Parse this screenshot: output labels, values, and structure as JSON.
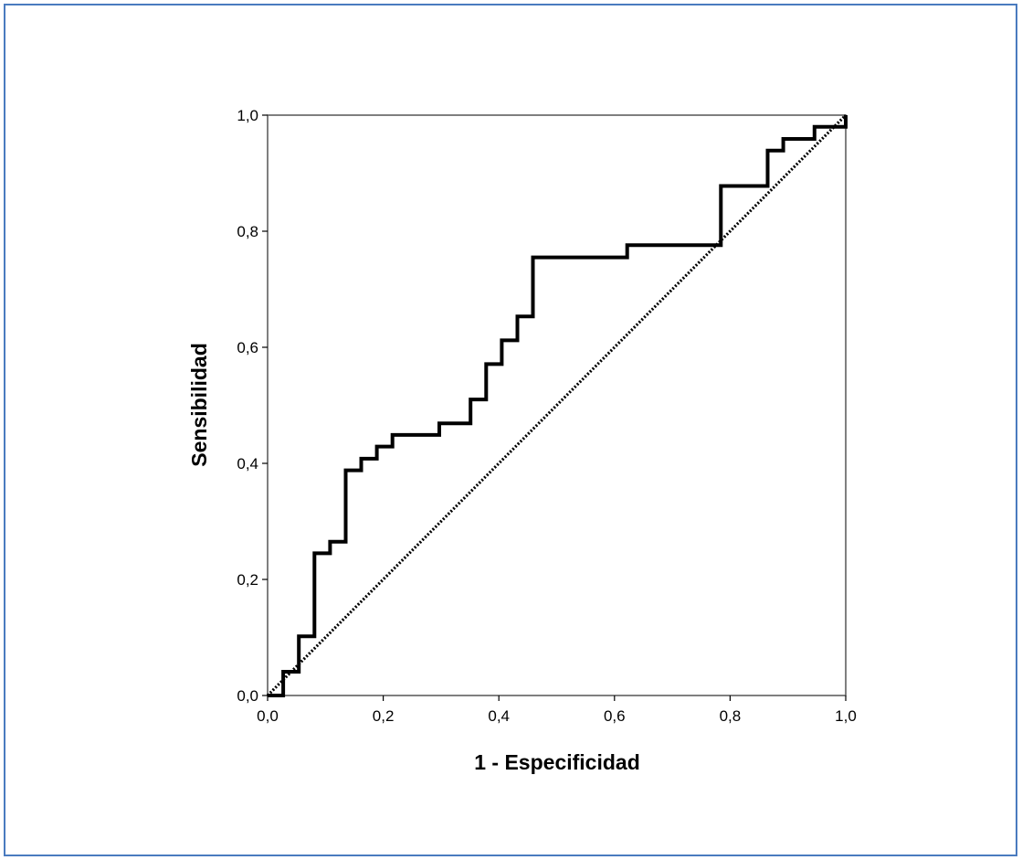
{
  "chart_data": {
    "type": "line",
    "title": "",
    "xlabel": "1 - Especificidad",
    "ylabel": "Sensibilidad",
    "xlim": [
      0,
      1
    ],
    "ylim": [
      0,
      1
    ],
    "x_ticks": [
      {
        "value": 0.0,
        "label": "0,0"
      },
      {
        "value": 0.2,
        "label": "0,2"
      },
      {
        "value": 0.4,
        "label": "0,4"
      },
      {
        "value": 0.6,
        "label": "0,6"
      },
      {
        "value": 0.8,
        "label": "0,8"
      },
      {
        "value": 1.0,
        "label": "1,0"
      }
    ],
    "y_ticks": [
      {
        "value": 0.0,
        "label": "0,0"
      },
      {
        "value": 0.2,
        "label": "0,2"
      },
      {
        "value": 0.4,
        "label": "0,4"
      },
      {
        "value": 0.6,
        "label": "0,6"
      },
      {
        "value": 0.8,
        "label": "0,8"
      },
      {
        "value": 1.0,
        "label": "1,0"
      }
    ],
    "grid": false,
    "legend": "none",
    "series": [
      {
        "style": "solid-step",
        "color": "#000000",
        "points": [
          [
            0.0,
            0.0
          ],
          [
            0.027,
            0.0
          ],
          [
            0.027,
            0.041
          ],
          [
            0.054,
            0.041
          ],
          [
            0.054,
            0.102
          ],
          [
            0.081,
            0.102
          ],
          [
            0.081,
            0.245
          ],
          [
            0.108,
            0.245
          ],
          [
            0.108,
            0.265
          ],
          [
            0.135,
            0.265
          ],
          [
            0.135,
            0.388
          ],
          [
            0.162,
            0.388
          ],
          [
            0.162,
            0.408
          ],
          [
            0.189,
            0.408
          ],
          [
            0.189,
            0.429
          ],
          [
            0.216,
            0.429
          ],
          [
            0.216,
            0.449
          ],
          [
            0.297,
            0.449
          ],
          [
            0.297,
            0.469
          ],
          [
            0.351,
            0.469
          ],
          [
            0.351,
            0.51
          ],
          [
            0.378,
            0.51
          ],
          [
            0.378,
            0.571
          ],
          [
            0.405,
            0.571
          ],
          [
            0.405,
            0.612
          ],
          [
            0.432,
            0.612
          ],
          [
            0.432,
            0.653
          ],
          [
            0.459,
            0.653
          ],
          [
            0.459,
            0.755
          ],
          [
            0.622,
            0.755
          ],
          [
            0.622,
            0.776
          ],
          [
            0.784,
            0.776
          ],
          [
            0.784,
            0.878
          ],
          [
            0.865,
            0.878
          ],
          [
            0.865,
            0.939
          ],
          [
            0.892,
            0.939
          ],
          [
            0.892,
            0.959
          ],
          [
            0.946,
            0.959
          ],
          [
            0.946,
            0.98
          ],
          [
            1.0,
            0.98
          ],
          [
            1.0,
            1.0
          ]
        ]
      },
      {
        "style": "dotted-reference",
        "color": "#000000",
        "points": [
          [
            0.0,
            0.0
          ],
          [
            1.0,
            1.0
          ]
        ]
      }
    ]
  }
}
